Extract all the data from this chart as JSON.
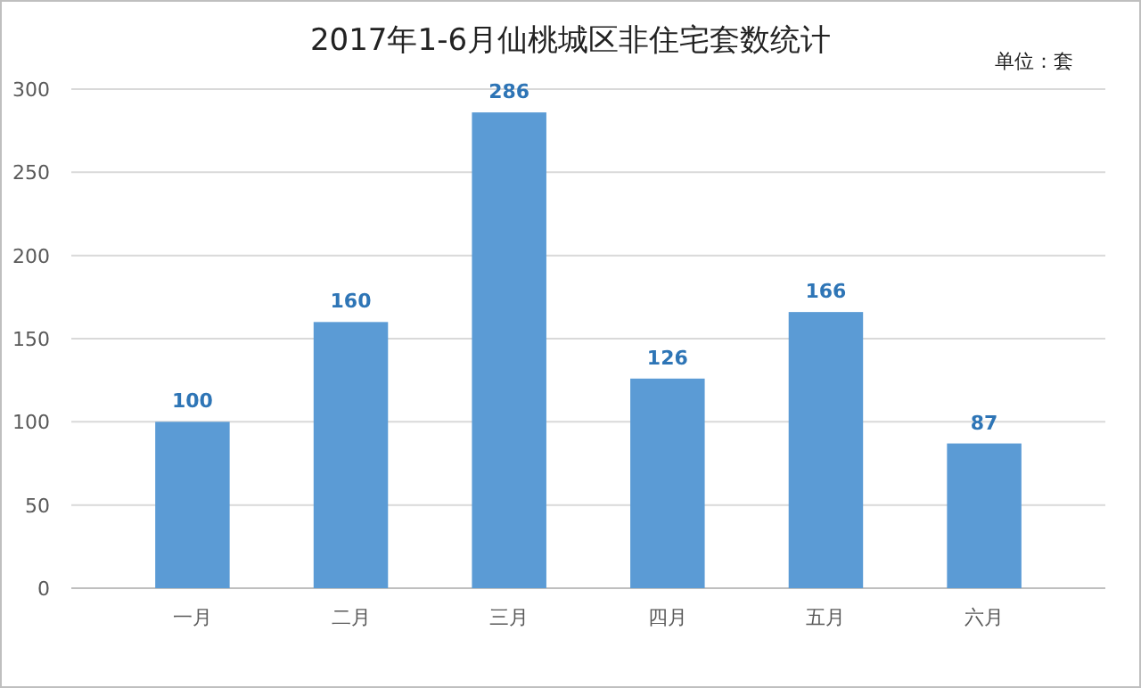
{
  "chart_data": {
    "type": "bar",
    "title": "2017年1-6月仙桃城区非住宅套数统计",
    "annotations": [
      "单位：套"
    ],
    "categories": [
      "一月",
      "二月",
      "三月",
      "四月",
      "五月",
      "六月"
    ],
    "values": [
      100,
      160,
      286,
      126,
      166,
      87
    ],
    "color": "#5b9bd5",
    "ylim": [
      0,
      300
    ],
    "yticks": [
      0,
      50,
      100,
      150,
      200,
      250,
      300
    ],
    "grid": "y",
    "data_labels": true
  }
}
